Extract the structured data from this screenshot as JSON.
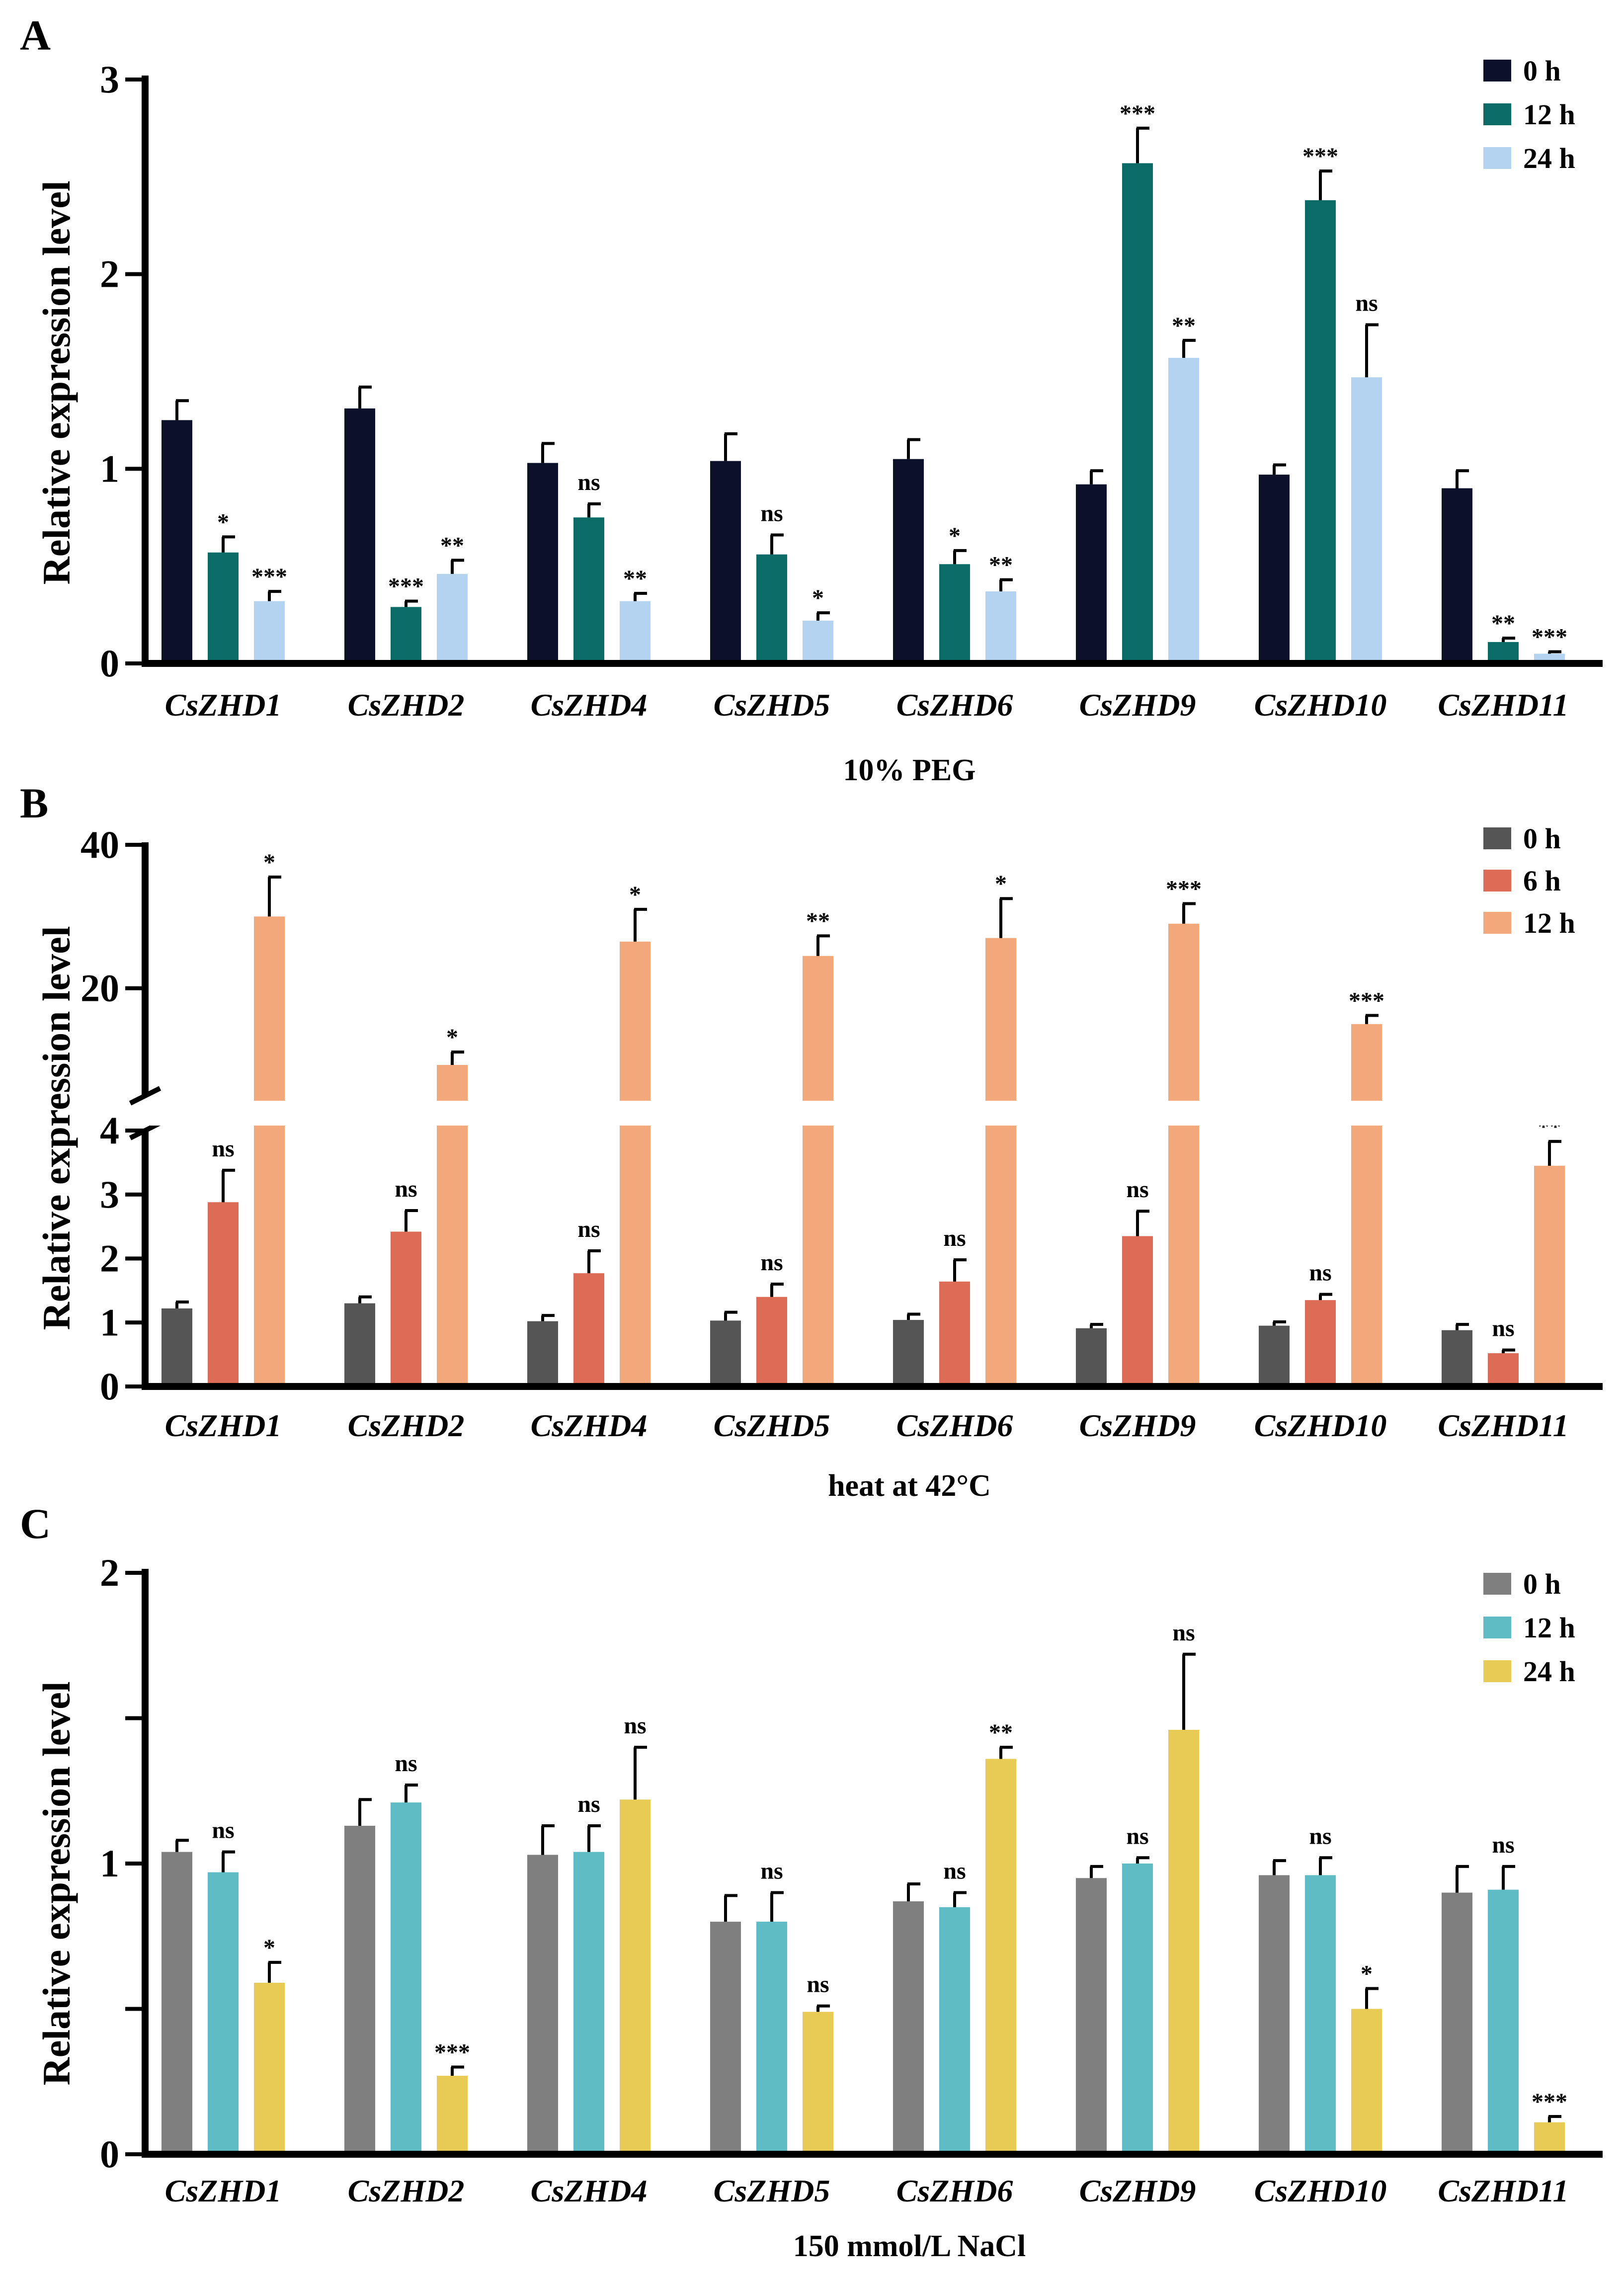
{
  "chart_data": [
    {
      "panel": "A",
      "type": "bar",
      "ylabel": "Relative expression level",
      "xlabel": "10% PEG",
      "ylim": [
        0,
        3
      ],
      "yticks": [
        "0",
        "1",
        "2",
        "3"
      ],
      "categories": [
        "CsZHD1",
        "CsZHD2",
        "CsZHD4",
        "CsZHD5",
        "CsZHD6",
        "CsZHD9",
        "CsZHD10",
        "CsZHD11"
      ],
      "series": [
        {
          "name": "0 h",
          "color": "#0b1128",
          "values": [
            1.25,
            1.31,
            1.03,
            1.04,
            1.05,
            0.92,
            0.97,
            0.9
          ],
          "errors": [
            0.1,
            0.11,
            0.1,
            0.14,
            0.1,
            0.07,
            0.05,
            0.09
          ],
          "sig": [
            "",
            "",
            "",
            "",
            "",
            "",
            "",
            ""
          ]
        },
        {
          "name": "12 h",
          "color": "#0b6b66",
          "values": [
            0.57,
            0.29,
            0.75,
            0.56,
            0.51,
            2.57,
            2.38,
            0.11
          ],
          "errors": [
            0.08,
            0.03,
            0.07,
            0.1,
            0.07,
            0.18,
            0.15,
            0.02
          ],
          "sig": [
            "*",
            "***",
            "ns",
            "ns",
            "*",
            "***",
            "***",
            "**"
          ]
        },
        {
          "name": "24 h",
          "color": "#b4d3f0",
          "values": [
            0.32,
            0.46,
            0.32,
            0.22,
            0.37,
            1.57,
            1.47,
            0.05
          ],
          "errors": [
            0.05,
            0.07,
            0.04,
            0.04,
            0.06,
            0.09,
            0.27,
            0.01
          ],
          "sig": [
            "***",
            "**",
            "**",
            "*",
            "**",
            "**",
            "ns",
            "***"
          ]
        }
      ]
    },
    {
      "panel": "B",
      "type": "bar",
      "ylabel": "Relative expression level",
      "xlabel": "heat at 42°C",
      "axis_break": true,
      "ylim_lower": [
        0,
        4
      ],
      "ylim_upper": [
        5,
        40
      ],
      "yticks_lower": [
        "0",
        "1",
        "2",
        "3",
        "4"
      ],
      "yticks_upper": [
        "20",
        "40"
      ],
      "categories": [
        "CsZHD1",
        "CsZHD2",
        "CsZHD4",
        "CsZHD5",
        "CsZHD6",
        "CsZHD9",
        "CsZHD10",
        "CsZHD11"
      ],
      "series": [
        {
          "name": "0 h",
          "color": "#555555",
          "values": [
            1.22,
            1.3,
            1.02,
            1.03,
            1.04,
            0.91,
            0.95,
            0.88
          ],
          "errors": [
            0.1,
            0.1,
            0.09,
            0.13,
            0.09,
            0.06,
            0.06,
            0.09
          ],
          "sig": [
            "",
            "",
            "",
            "",
            "",
            "",
            "",
            ""
          ]
        },
        {
          "name": "6 h",
          "color": "#dc6c55",
          "values": [
            2.88,
            2.42,
            1.77,
            1.4,
            1.64,
            2.35,
            1.35,
            0.52
          ],
          "errors": [
            0.5,
            0.33,
            0.35,
            0.2,
            0.34,
            0.39,
            0.09,
            0.05
          ],
          "sig": [
            "ns",
            "ns",
            "ns",
            "ns",
            "ns",
            "ns",
            "ns",
            "ns"
          ]
        },
        {
          "name": "12 h",
          "color": "#f2a87a",
          "values": [
            30.0,
            9.3,
            26.5,
            24.5,
            27.0,
            29.0,
            15.0,
            3.45
          ],
          "errors": [
            5.5,
            1.8,
            4.5,
            2.8,
            5.5,
            2.8,
            1.2,
            0.38
          ],
          "sig": [
            "*",
            "*",
            "*",
            "**",
            "*",
            "***",
            "***",
            "**"
          ]
        }
      ]
    },
    {
      "panel": "C",
      "type": "bar",
      "ylabel": "Relative expression level",
      "xlabel": "150 mmol/L NaCl",
      "ylim": [
        0,
        2
      ],
      "yticks": [
        "0",
        "1",
        "2"
      ],
      "categories": [
        "CsZHD1",
        "CsZHD2",
        "CsZHD4",
        "CsZHD5",
        "CsZHD6",
        "CsZHD9",
        "CsZHD10",
        "CsZHD11"
      ],
      "series": [
        {
          "name": "0 h",
          "color": "#7f7f7f",
          "values": [
            1.04,
            1.13,
            1.03,
            0.8,
            0.87,
            0.95,
            0.96,
            0.9
          ],
          "errors": [
            0.04,
            0.09,
            0.1,
            0.09,
            0.06,
            0.04,
            0.05,
            0.09
          ],
          "sig": [
            "",
            "",
            "",
            "",
            "",
            "",
            "",
            ""
          ]
        },
        {
          "name": "12 h",
          "color": "#5fbcc4",
          "values": [
            0.97,
            1.21,
            1.04,
            0.8,
            0.85,
            1.0,
            0.96,
            0.91
          ],
          "errors": [
            0.07,
            0.06,
            0.09,
            0.1,
            0.05,
            0.02,
            0.06,
            0.08
          ],
          "sig": [
            "ns",
            "ns",
            "ns",
            "ns",
            "ns",
            "ns",
            "ns",
            "ns"
          ]
        },
        {
          "name": "24 h",
          "color": "#e8cb55",
          "values": [
            0.59,
            0.27,
            1.22,
            0.49,
            1.36,
            1.46,
            0.5,
            0.11
          ],
          "errors": [
            0.07,
            0.03,
            0.18,
            0.02,
            0.04,
            0.26,
            0.07,
            0.02
          ],
          "sig": [
            "*",
            "***",
            "ns",
            "ns",
            "**",
            "ns",
            "*",
            "***"
          ]
        }
      ]
    }
  ]
}
